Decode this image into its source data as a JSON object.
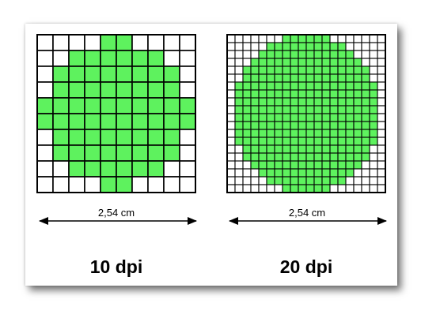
{
  "colors": {
    "fill": "#5ef25e",
    "empty": "#ffffff",
    "grid_line": "#000000",
    "shadow": "#6e6e6e"
  },
  "panels": [
    {
      "caption": "10 dpi",
      "measure_label": "2,54 cm",
      "cells": 10,
      "rows": [
        "0000110000",
        "0011111100",
        "0111111110",
        "0111111110",
        "1111111111",
        "1111111111",
        "0111111110",
        "0111111110",
        "0011111100",
        "0000110000"
      ]
    },
    {
      "caption": "20 dpi",
      "measure_label": "2,54 cm",
      "cells": 20,
      "rows": [
        "00000001111110000000",
        "00000111111111100000",
        "00001111111111110000",
        "00011111111111111000",
        "00111111111111111100",
        "00111111111111111100",
        "01111111111111111110",
        "01111111111111111110",
        "01111111111111111110",
        "01111111111111111110",
        "01111111111111111110",
        "01111111111111111110",
        "01111111111111111110",
        "01111111111111111110",
        "00111111111111111100",
        "00111111111111111100",
        "00011111111111111000",
        "00001111111111110000",
        "00000111111111100000",
        "00000001111110000000"
      ]
    }
  ]
}
